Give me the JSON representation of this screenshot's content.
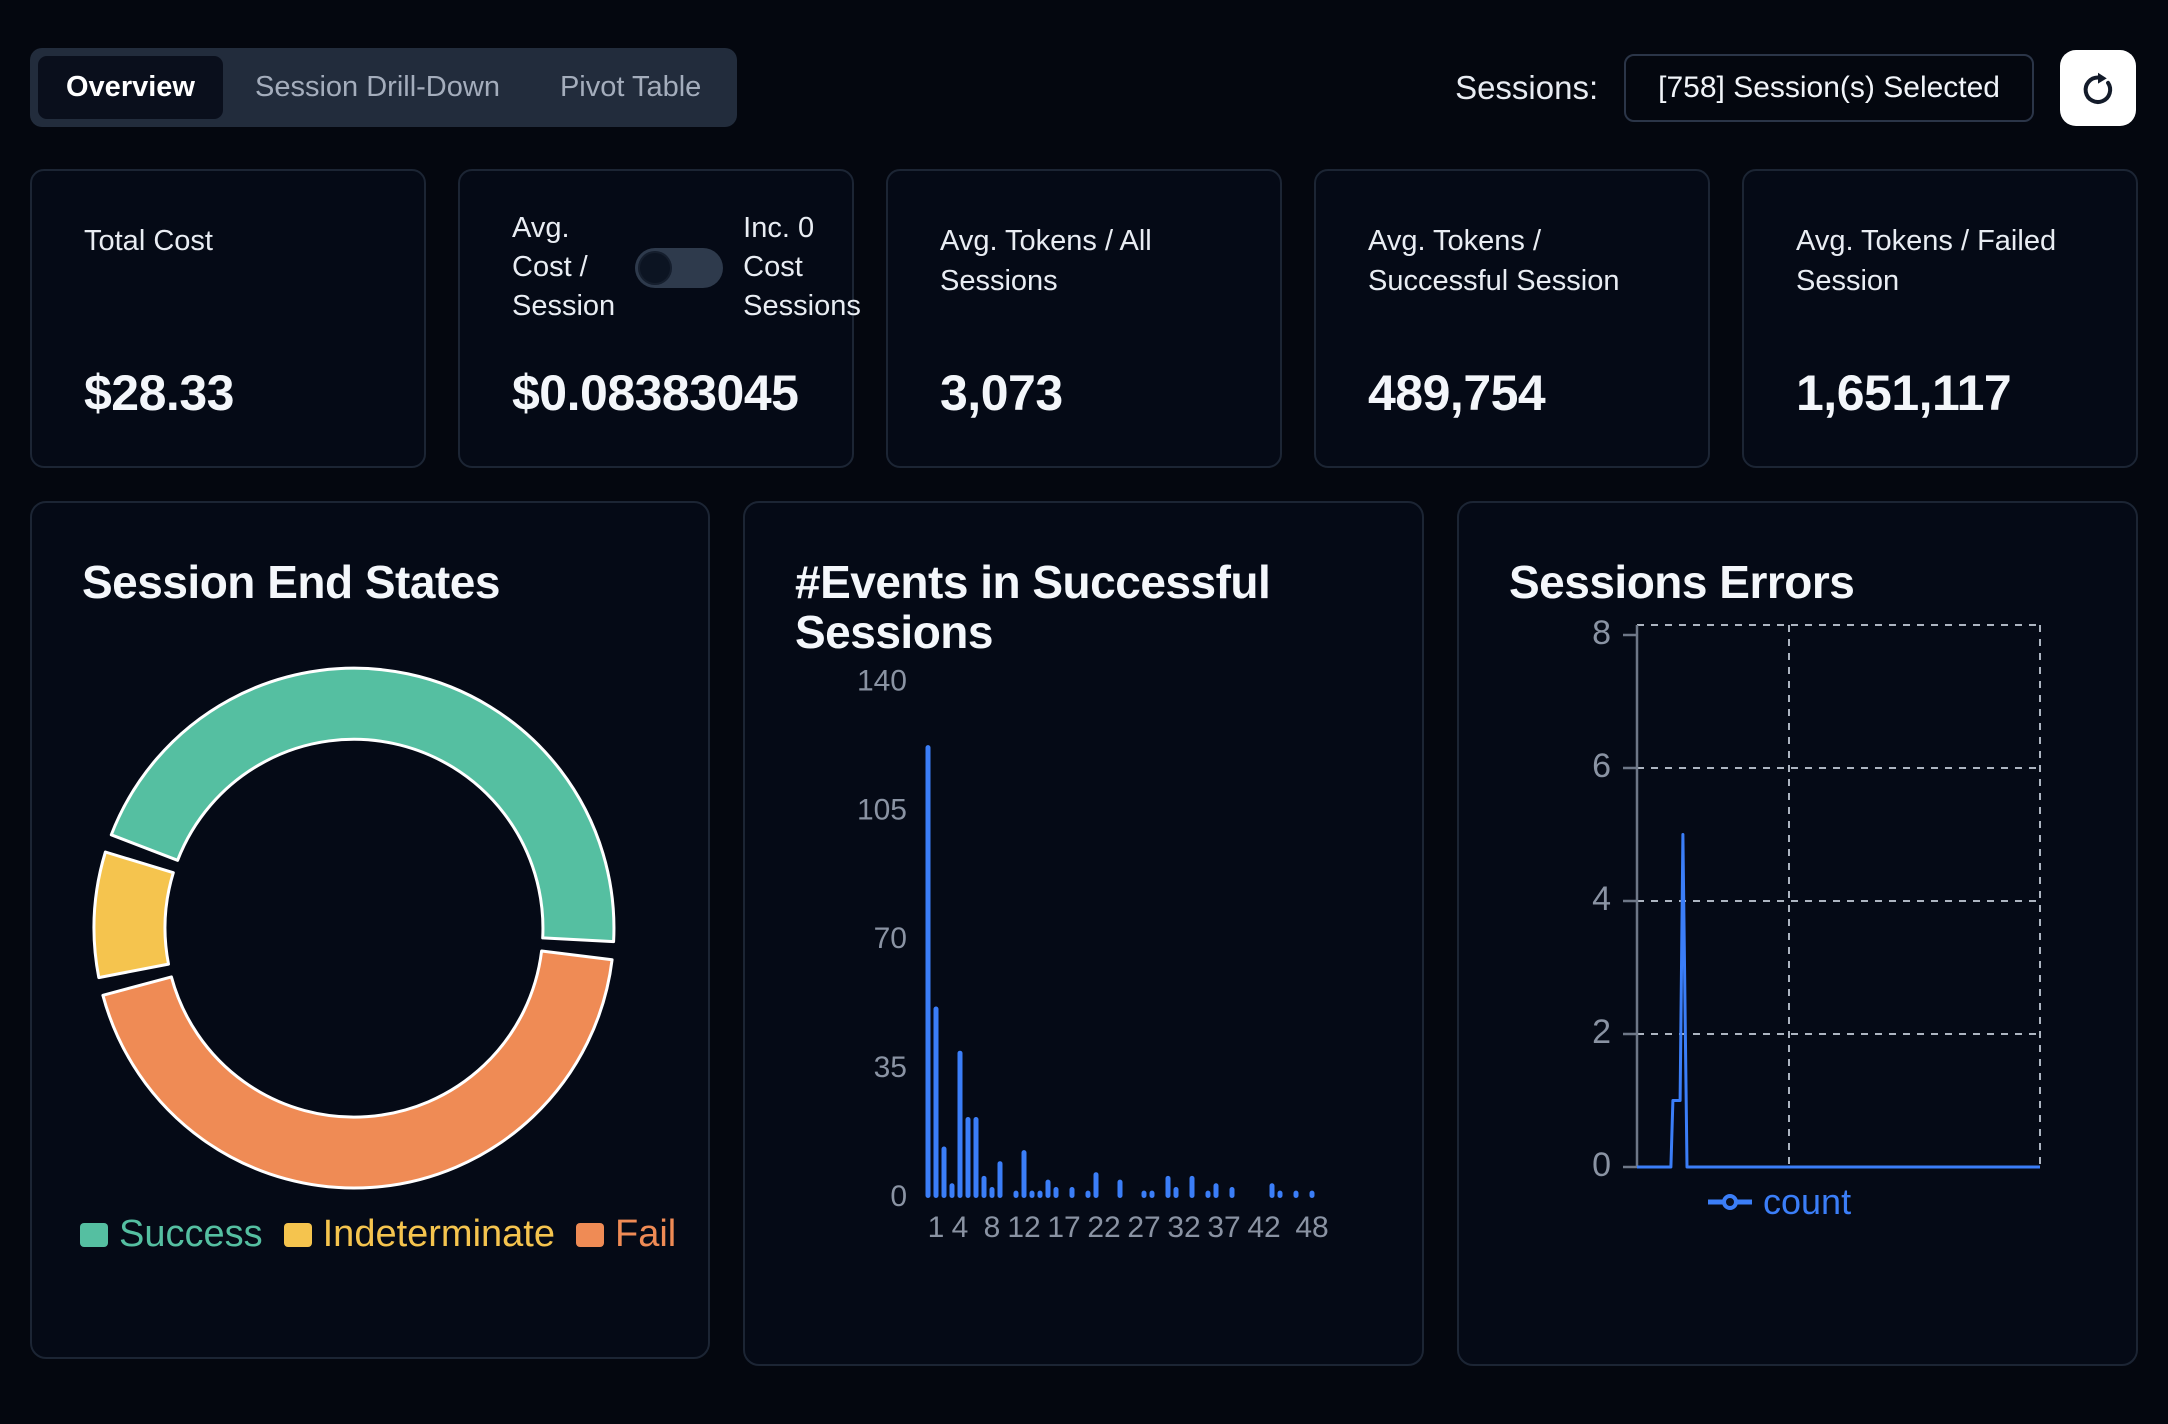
{
  "header": {
    "tabs": [
      {
        "label": "Overview",
        "active": true
      },
      {
        "label": "Session Drill-Down",
        "active": false
      },
      {
        "label": "Pivot Table",
        "active": false
      }
    ],
    "sessions_label": "Sessions:",
    "sessions_selector_value": "[758] Session(s) Selected",
    "refresh_icon": "refresh-circular-arrow-icon"
  },
  "stats": [
    {
      "label": "Total Cost",
      "value": "$28.33"
    },
    {
      "label": "Avg. Cost / Session",
      "value": "$0.08383045",
      "toggle": {
        "label": "Inc. 0 Cost Sessions",
        "state": "off"
      }
    },
    {
      "label": "Avg. Tokens / All Sessions",
      "value": "3,073"
    },
    {
      "label": "Avg. Tokens / Successful Session",
      "value": "489,754"
    },
    {
      "label": "Avg. Tokens / Failed Session",
      "value": "1,651,117"
    }
  ],
  "colors": {
    "page_bg": "#04070F",
    "card_bg": "#050A16",
    "card_border": "#1C2534",
    "accent_blue": "#3B7EF8",
    "success_teal": "#55BFA1",
    "indeterminate_yellow": "#F5C44E",
    "fail_orange": "#EF8B55",
    "axis_text_gray": "#8A93A3",
    "refresh_button_bg": "#FFFFFF"
  },
  "chart_data": [
    {
      "id": "session_end_states",
      "type": "pie",
      "donut": true,
      "title": "Session End States",
      "start_angle_deg": 291,
      "pad_angle_deg": 4,
      "segments": [
        {
          "label": "Success",
          "percent": 45.0,
          "angle_deg": 162,
          "color": "#55BFA1"
        },
        {
          "label": "Fail",
          "percent": 43.9,
          "angle_deg": 158,
          "color": "#EF8B55"
        },
        {
          "label": "Indeterminate",
          "percent": 7.8,
          "angle_deg": 28,
          "color": "#F5C44E"
        }
      ],
      "legend": [
        {
          "label": "Success",
          "color": "#55BFA1"
        },
        {
          "label": "Indeterminate",
          "color": "#F5C44E"
        },
        {
          "label": "Fail",
          "color": "#EF8B55"
        }
      ],
      "legend_position": "bottom"
    },
    {
      "id": "events_in_successful_sessions",
      "type": "bar",
      "title": "#Events in Successful Sessions",
      "categories": [
        0,
        1,
        2,
        3,
        4,
        5,
        6,
        7,
        8,
        9,
        10,
        11,
        12,
        13,
        14,
        15,
        16,
        17,
        18,
        19,
        20,
        21,
        22,
        23,
        24,
        25,
        26,
        27,
        28,
        29,
        30,
        31,
        32,
        33,
        34,
        35,
        36,
        37,
        38,
        39,
        40,
        41,
        42,
        43,
        44,
        45,
        46,
        47,
        48,
        49
      ],
      "values": [
        123,
        52,
        14,
        4,
        40,
        22,
        22,
        6,
        3,
        10,
        0,
        2,
        13,
        2,
        2,
        5,
        3,
        0,
        3,
        0,
        2,
        7,
        0,
        0,
        5,
        0,
        0,
        2,
        2,
        0,
        6,
        3,
        0,
        6,
        0,
        2,
        4,
        0,
        3,
        0,
        0,
        0,
        0,
        4,
        2,
        0,
        2,
        0,
        2,
        0
      ],
      "x_tick_labels": [
        1,
        4,
        8,
        12,
        17,
        22,
        27,
        32,
        37,
        42,
        48
      ],
      "y_ticks": [
        0,
        35,
        70,
        105,
        140
      ],
      "ylim": [
        0,
        140
      ],
      "bar_color": "#3B7EF8",
      "grid": false
    },
    {
      "id": "sessions_errors",
      "type": "line",
      "title": "Sessions Errors",
      "series": [
        {
          "name": "count",
          "color": "#3B7EF8",
          "points_x_pct_y_value": [
            [
              0,
              0
            ],
            [
              8.4,
              0
            ],
            [
              8.9,
              1
            ],
            [
              10.7,
              1
            ],
            [
              11.4,
              5
            ],
            [
              12.4,
              0
            ],
            [
              100,
              0
            ]
          ]
        }
      ],
      "y_ticks": [
        0,
        2,
        4,
        6,
        8
      ],
      "ylim": [
        0,
        8.15
      ],
      "grid": "dashed",
      "legend": [
        "count"
      ],
      "legend_position": "bottom"
    }
  ]
}
